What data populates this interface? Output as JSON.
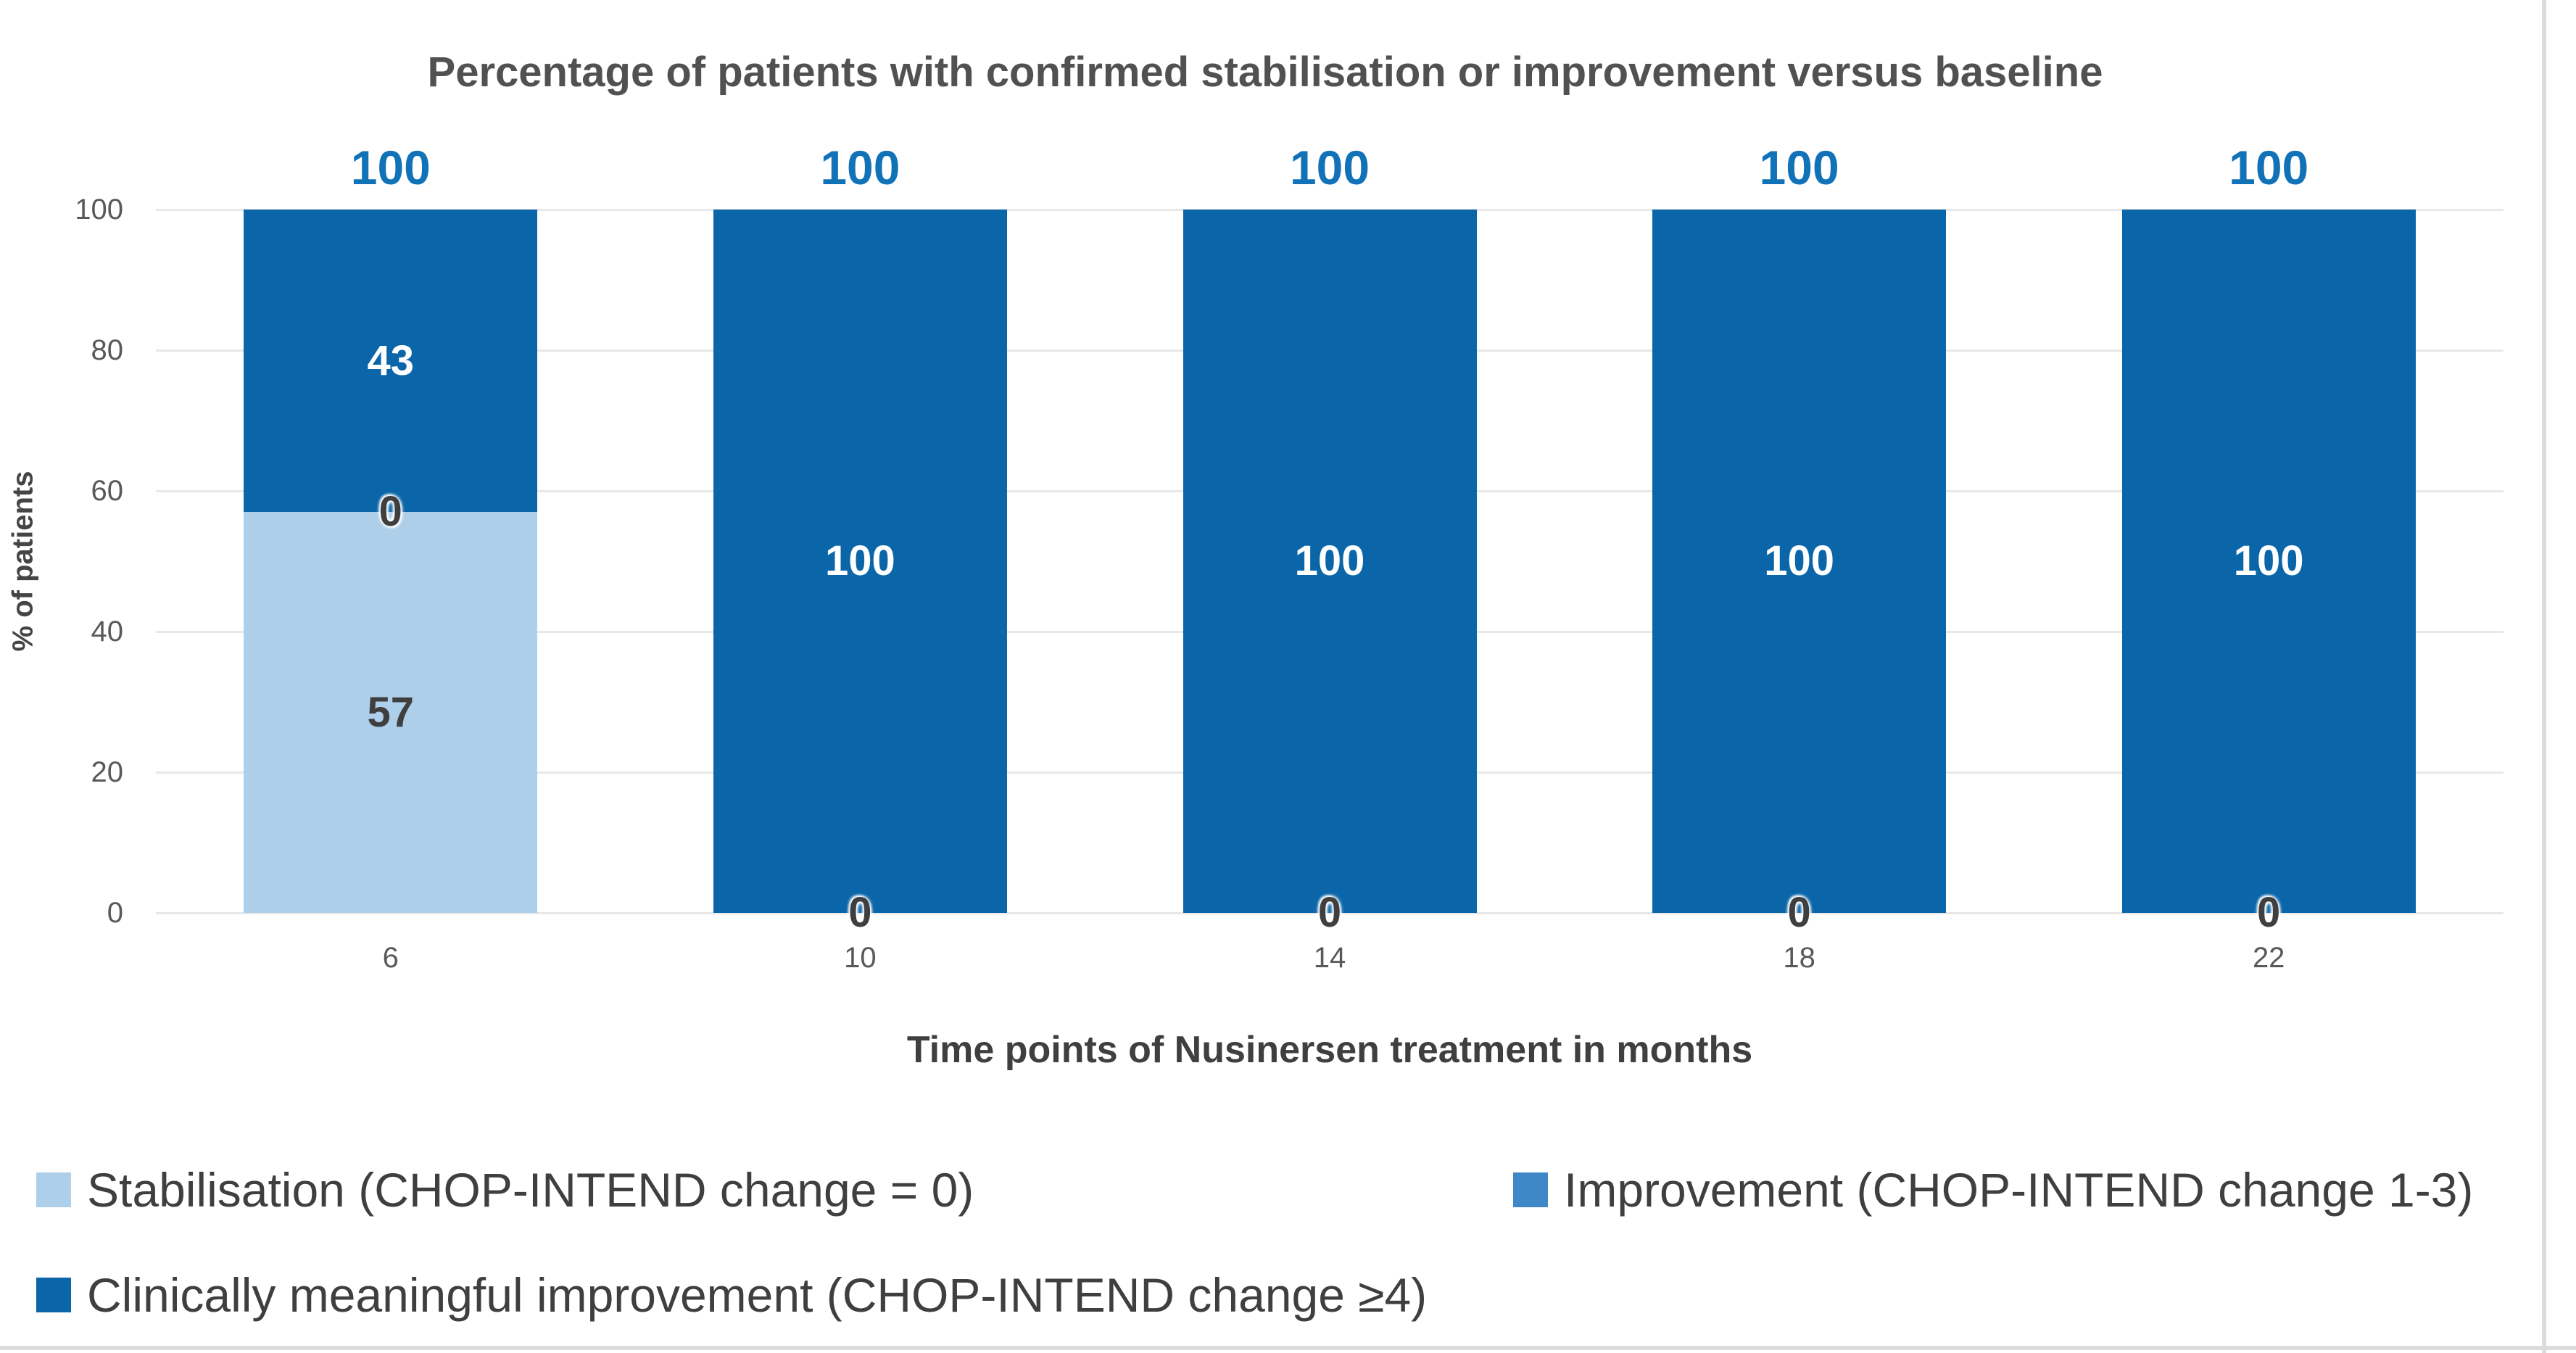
{
  "chart_data": {
    "type": "bar",
    "stacked": true,
    "title": "Percentage of patients with confirmed stabilisation or improvement versus baseline",
    "xlabel": "Time points of Nusinersen treatment in months",
    "ylabel": "% of patients",
    "ylim": [
      0,
      100
    ],
    "yticks": [
      0,
      20,
      40,
      60,
      80,
      100
    ],
    "grid": true,
    "legend_position": "bottom",
    "categories": [
      "6",
      "10",
      "14",
      "18",
      "22"
    ],
    "series": [
      {
        "name": "Stabilisation (CHOP-INTEND change = 0)",
        "color": "#AECFEA",
        "label_color": "#3F3F3F",
        "values": [
          57,
          0,
          0,
          0,
          0
        ]
      },
      {
        "name": "Improvement (CHOP-INTEND change 1-3)",
        "color": "#3E88C8",
        "label_color": "#3F3F3F",
        "values": [
          0,
          0,
          0,
          0,
          0
        ]
      },
      {
        "name": "Clinically meaningful improvement (CHOP-INTEND change ≥4)",
        "color": "#0A66A9",
        "label_color": "#FFFFFF",
        "values": [
          43,
          100,
          100,
          100,
          100
        ]
      }
    ],
    "totals": [
      "100",
      "100",
      "100",
      "100",
      "100"
    ]
  },
  "colors": {
    "total_label": "#1272B8",
    "gridline": "#E8E8E8",
    "tick_text": "#595959",
    "zero_label": "#3F3F3F"
  }
}
